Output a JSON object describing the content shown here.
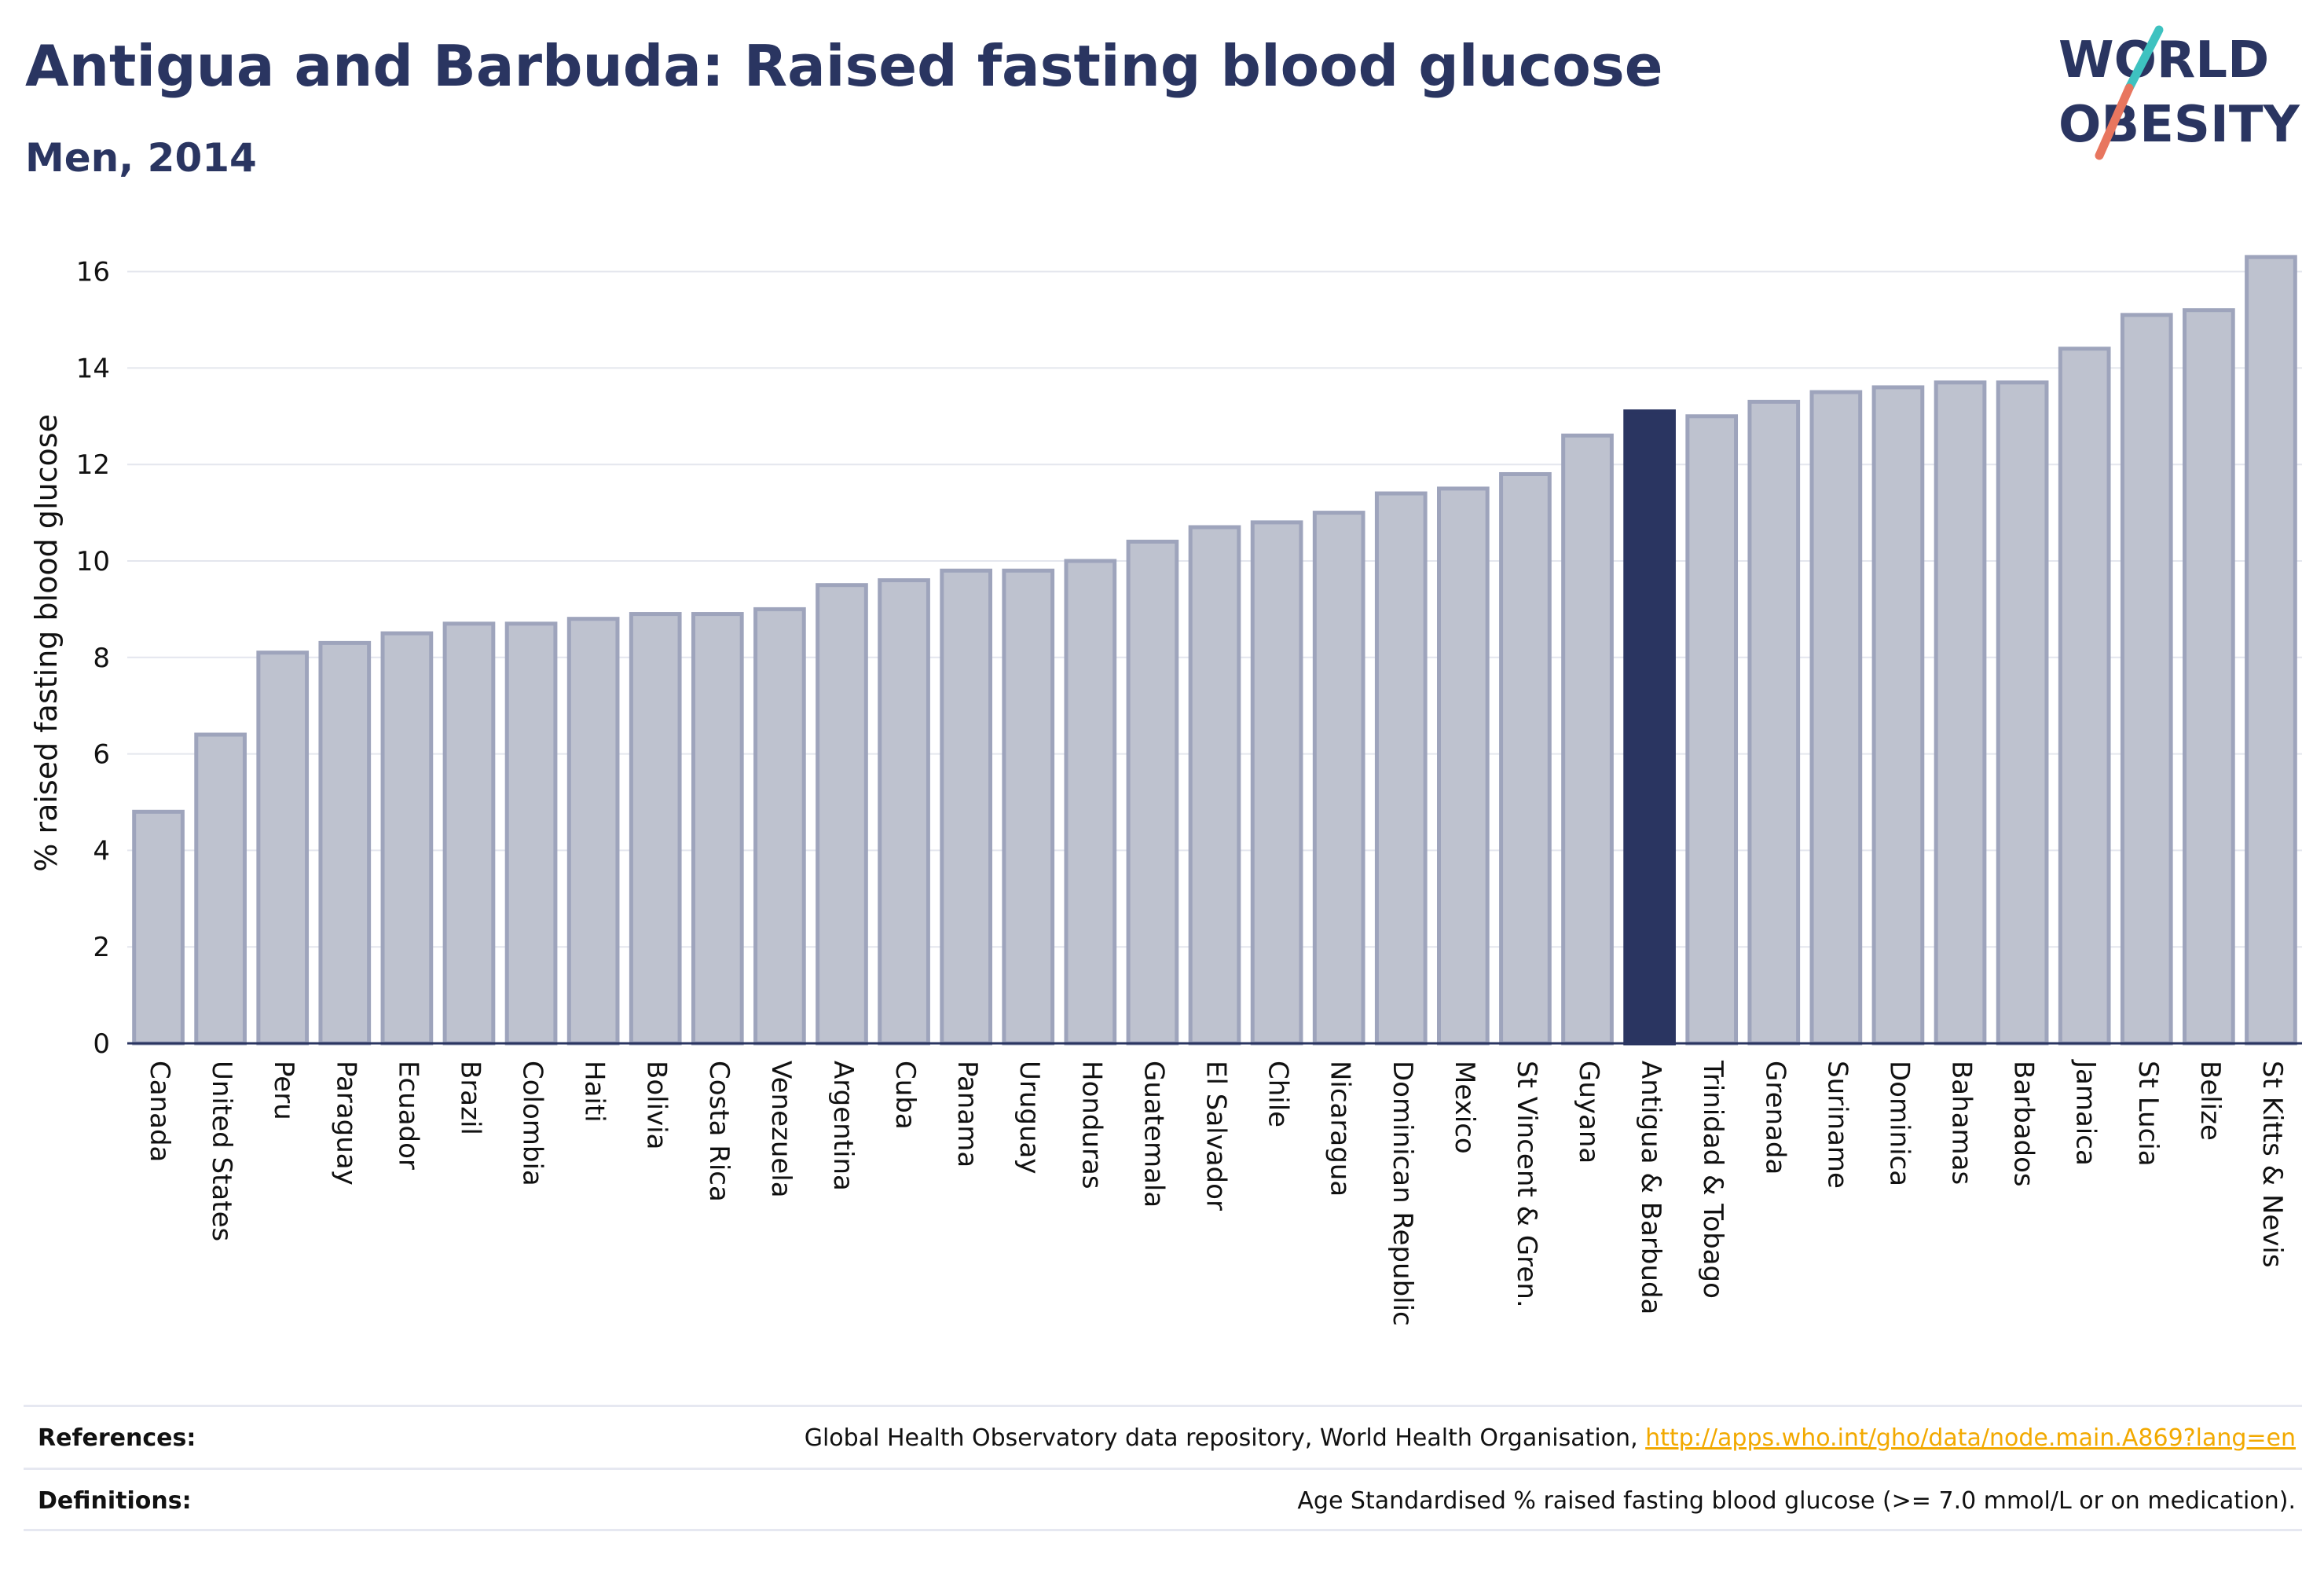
{
  "header": {
    "title": "Antigua and Barbuda: Raised fasting blood glucose",
    "subtitle": "Men, 2014"
  },
  "logo": {
    "line1": "WORLD",
    "line2": "OBESITY"
  },
  "colors": {
    "highlight": "#2a3561",
    "bar_fill": "#bec2cf",
    "bar_stroke": "#9ea4bc",
    "accent_teal": "#3ec2c0",
    "accent_coral": "#e8765f",
    "link": "#f2a900"
  },
  "chart_data": {
    "type": "bar",
    "ylabel": "% raised fasting blood glucose",
    "xlabel": "",
    "ylim": [
      0,
      17
    ],
    "yticks": [
      0,
      2,
      4,
      6,
      8,
      10,
      12,
      14,
      16
    ],
    "grid": true,
    "highlight": "Antigua & Barbuda",
    "categories": [
      "Canada",
      "United States",
      "Peru",
      "Paraguay",
      "Ecuador",
      "Brazil",
      "Colombia",
      "Haiti",
      "Bolivia",
      "Costa Rica",
      "Venezuela",
      "Argentina",
      "Cuba",
      "Panama",
      "Uruguay",
      "Honduras",
      "Guatemala",
      "El Salvador",
      "Chile",
      "Nicaragua",
      "Dominican Republic",
      "Mexico",
      "St Vincent & Gren.",
      "Guyana",
      "Antigua & Barbuda",
      "Trinidad & Tobago",
      "Grenada",
      "Suriname",
      "Dominica",
      "Bahamas",
      "Barbados",
      "Jamaica",
      "St Lucia",
      "Belize",
      "St Kitts & Nevis"
    ],
    "values": [
      4.8,
      6.4,
      8.1,
      8.3,
      8.5,
      8.7,
      8.7,
      8.8,
      8.9,
      8.9,
      9.0,
      9.5,
      9.6,
      9.8,
      9.8,
      10.0,
      10.4,
      10.7,
      10.8,
      11.0,
      11.4,
      11.5,
      11.8,
      12.6,
      13.1,
      13.0,
      13.3,
      13.5,
      13.6,
      13.7,
      13.7,
      14.4,
      15.1,
      15.2,
      16.3
    ]
  },
  "footer": {
    "references_label": "References:",
    "references_text": "Global Health Observatory data repository, World Health Organisation, ",
    "references_link": "http://apps.who.int/gho/data/node.main.A869?lang=en",
    "definitions_label": "Definitions:",
    "definitions_text": "Age Standardised % raised fasting blood glucose (>= 7.0 mmol/L or on medication)."
  }
}
